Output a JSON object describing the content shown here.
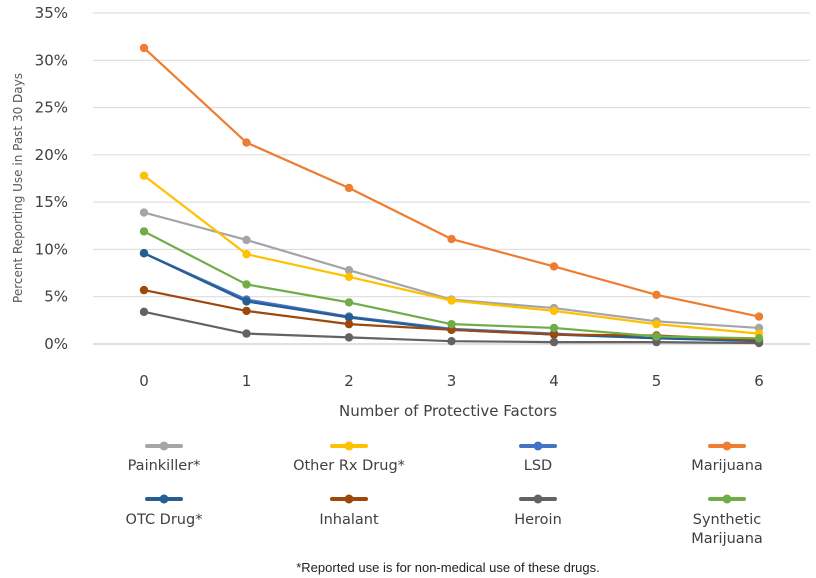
{
  "chart_data": {
    "type": "line",
    "title": "",
    "xlabel": "Number of Protective Factors",
    "ylabel": "Percent Reporting Use in Past 30 Days",
    "x": [
      0,
      1,
      2,
      3,
      4,
      5,
      6
    ],
    "y_ticks": [
      "0%",
      "5%",
      "10%",
      "15%",
      "20%",
      "25%",
      "30%",
      "35%"
    ],
    "ylim": [
      0,
      35
    ],
    "grid": "horizontal",
    "legend_position": "bottom",
    "footnote": "*Reported use is for non-medical use of these drugs.",
    "series": [
      {
        "name": "Painkiller*",
        "color": "#A5A5A5",
        "values": [
          13.9,
          11.0,
          7.8,
          4.7,
          3.8,
          2.4,
          1.7
        ]
      },
      {
        "name": "Other Rx Drug*",
        "color": "#FFC000",
        "values": [
          17.8,
          9.5,
          7.1,
          4.6,
          3.5,
          2.1,
          1.1
        ]
      },
      {
        "name": "LSD",
        "color": "#4472C4",
        "values": [
          9.6,
          4.7,
          2.9,
          1.6,
          1.1,
          0.6,
          0.4
        ]
      },
      {
        "name": "Marijuana",
        "color": "#ED7D31",
        "values": [
          31.3,
          21.3,
          16.5,
          11.1,
          8.2,
          5.2,
          2.9
        ]
      },
      {
        "name": "OTC Drug*",
        "color": "#255E91",
        "values": [
          9.6,
          4.5,
          2.8,
          1.5,
          1.0,
          0.6,
          0.3
        ]
      },
      {
        "name": "Inhalant",
        "color": "#9E480E",
        "values": [
          5.7,
          3.5,
          2.1,
          1.5,
          1.0,
          0.9,
          0.4
        ]
      },
      {
        "name": "Heroin",
        "color": "#636363",
        "values": [
          3.4,
          1.1,
          0.7,
          0.3,
          0.2,
          0.2,
          0.1
        ]
      },
      {
        "name": "Synthetic Marijuana",
        "color": "#70AD47",
        "values": [
          11.9,
          6.3,
          4.4,
          2.1,
          1.7,
          0.8,
          0.6
        ]
      }
    ]
  }
}
